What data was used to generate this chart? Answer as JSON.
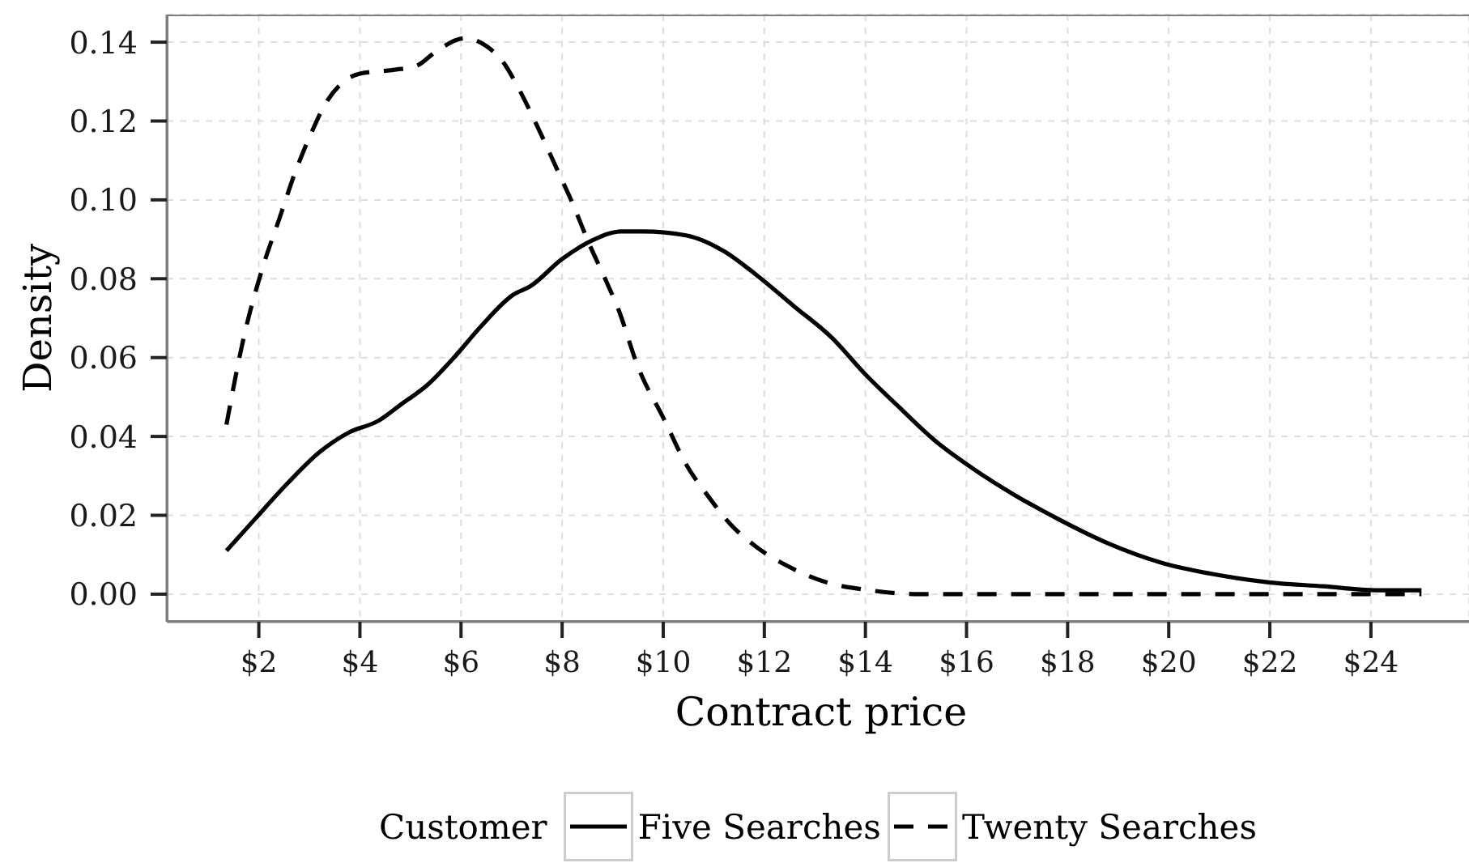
{
  "chart_data": {
    "type": "line",
    "xlabel": "Contract price",
    "ylabel": "Density",
    "legend_title": "Customer",
    "legend": "bottom",
    "grid": true,
    "xlim": [
      0.18,
      25.94
    ],
    "ylim": [
      -0.007,
      0.147
    ],
    "xticks": [
      {
        "value": 2,
        "label": "$2"
      },
      {
        "value": 4,
        "label": "$4"
      },
      {
        "value": 6,
        "label": "$6"
      },
      {
        "value": 8,
        "label": "$8"
      },
      {
        "value": 10,
        "label": "$10"
      },
      {
        "value": 12,
        "label": "$12"
      },
      {
        "value": 14,
        "label": "$14"
      },
      {
        "value": 16,
        "label": "$16"
      },
      {
        "value": 18,
        "label": "$18"
      },
      {
        "value": 20,
        "label": "$20"
      },
      {
        "value": 22,
        "label": "$22"
      },
      {
        "value": 24,
        "label": "$24"
      }
    ],
    "yticks": [
      {
        "value": 0,
        "label": "0.00"
      },
      {
        "value": 0.02,
        "label": "0.02"
      },
      {
        "value": 0.04,
        "label": "0.04"
      },
      {
        "value": 0.06,
        "label": "0.06"
      },
      {
        "value": 0.08,
        "label": "0.08"
      },
      {
        "value": 0.1,
        "label": "0.10"
      },
      {
        "value": 0.12,
        "label": "0.12"
      },
      {
        "value": 0.14,
        "label": "0.14"
      }
    ],
    "series": [
      {
        "name": "Five Searches",
        "color": "#000000",
        "line_style": "solid",
        "x": [
          1.36,
          1.92,
          2.56,
          3.2,
          3.78,
          4.37,
          4.8,
          5.33,
          5.86,
          6.4,
          7.04,
          7.36,
          8.0,
          8.64,
          9.17,
          9.6,
          10.45,
          11.2,
          11.84,
          12.59,
          13.34,
          13.98,
          14.62,
          15.37,
          16.11,
          16.97,
          17.82,
          18.78,
          19.85,
          20.91,
          21.98,
          23.05,
          24.12,
          25.0
        ],
        "values": [
          0.011,
          0.019,
          0.028,
          0.036,
          0.041,
          0.044,
          0.048,
          0.053,
          0.06,
          0.068,
          0.076,
          0.078,
          0.085,
          0.09,
          0.092,
          0.092,
          0.091,
          0.087,
          0.081,
          0.073,
          0.065,
          0.056,
          0.048,
          0.039,
          0.032,
          0.025,
          0.019,
          0.013,
          0.008,
          0.005,
          0.003,
          0.002,
          0.001,
          0.001
        ]
      },
      {
        "name": "Twenty Searches",
        "color": "#000000",
        "line_style": "dashed",
        "x": [
          1.36,
          1.7,
          2.08,
          2.4,
          2.72,
          3.04,
          3.3,
          3.68,
          4.0,
          4.69,
          5.12,
          5.54,
          6.08,
          6.5,
          6.83,
          7.15,
          7.57,
          7.89,
          8.21,
          8.53,
          8.85,
          9.12,
          9.49,
          10.03,
          10.45,
          10.88,
          11.31,
          11.84,
          12.48,
          13.23,
          14.08,
          15.05,
          17.0,
          19.0,
          21.0,
          23.0,
          25.0
        ],
        "values": [
          0.043,
          0.065,
          0.083,
          0.095,
          0.107,
          0.117,
          0.124,
          0.13,
          0.132,
          0.133,
          0.134,
          0.138,
          0.141,
          0.139,
          0.135,
          0.128,
          0.117,
          0.108,
          0.099,
          0.089,
          0.08,
          0.072,
          0.058,
          0.044,
          0.033,
          0.025,
          0.018,
          0.012,
          0.007,
          0.003,
          0.001,
          0.0,
          0.0,
          0.0,
          0.0,
          0.0,
          0.0
        ]
      }
    ]
  }
}
